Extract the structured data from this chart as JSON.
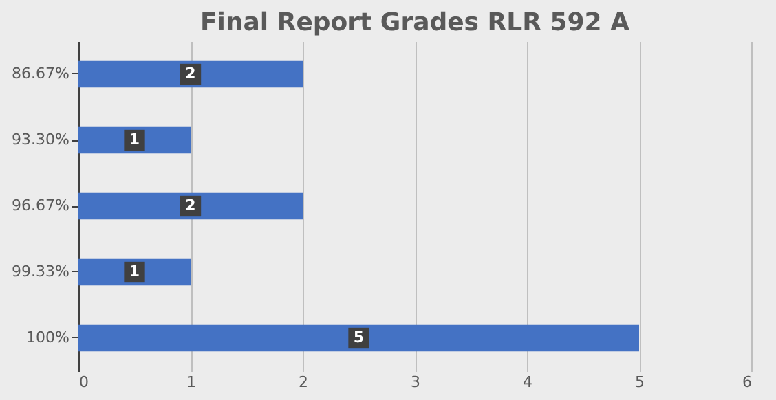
{
  "chart_data": {
    "type": "bar",
    "orientation": "horizontal",
    "title": "Final Report Grades RLR 592 A",
    "categories": [
      "86.67%",
      "93.30%",
      "96.67%",
      "99.33%",
      "100%"
    ],
    "values": [
      2,
      1,
      2,
      1,
      5
    ],
    "color": "#4472c4",
    "xlim": [
      0,
      6
    ],
    "xticks": [
      0,
      1,
      2,
      3,
      4,
      5,
      6
    ],
    "grid": "x",
    "data_labels": true
  }
}
